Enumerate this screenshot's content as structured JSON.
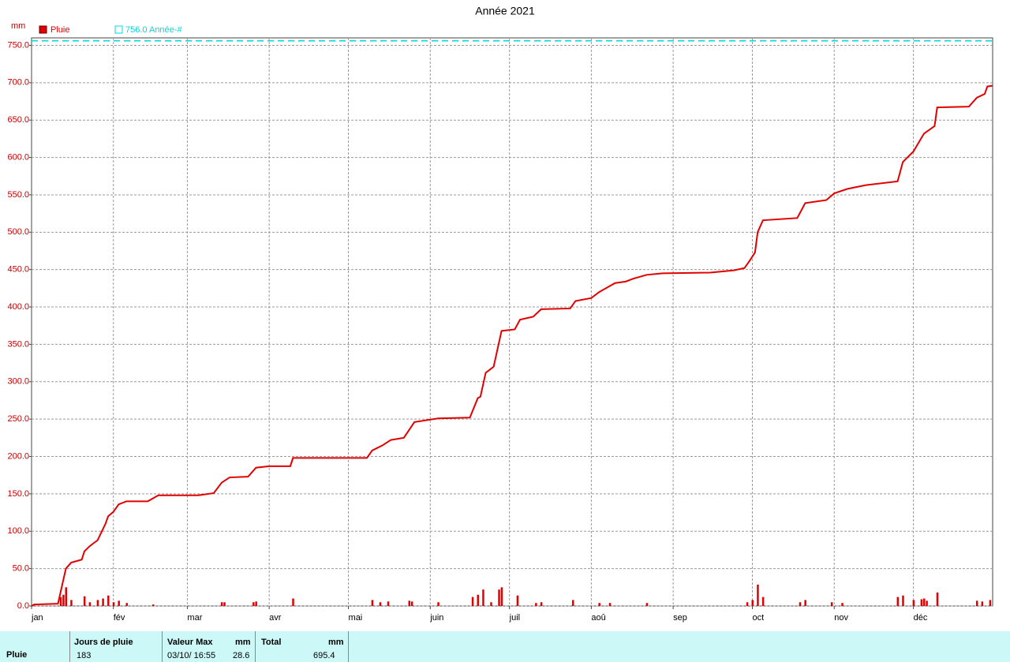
{
  "chart_data": {
    "type": "line",
    "title": "Année 2021",
    "y_label": "mm",
    "xlim": [
      0,
      364
    ],
    "ylim": [
      0,
      760
    ],
    "xticks": [
      {
        "value": 0,
        "label": "jan"
      },
      {
        "value": 31,
        "label": "fév"
      },
      {
        "value": 59,
        "label": "mar"
      },
      {
        "value": 90,
        "label": "avr"
      },
      {
        "value": 120,
        "label": "mai"
      },
      {
        "value": 151,
        "label": "juin"
      },
      {
        "value": 181,
        "label": "juil"
      },
      {
        "value": 212,
        "label": "aoû"
      },
      {
        "value": 243,
        "label": "sep"
      },
      {
        "value": 273,
        "label": "oct"
      },
      {
        "value": 304,
        "label": "nov"
      },
      {
        "value": 334,
        "label": "déc"
      }
    ],
    "yticks": [
      {
        "value": 0,
        "label": "0.0"
      },
      {
        "value": 50,
        "label": "50.0"
      },
      {
        "value": 100,
        "label": "100.0"
      },
      {
        "value": 150,
        "label": "150.0"
      },
      {
        "value": 200,
        "label": "200.0"
      },
      {
        "value": 250,
        "label": "250.0"
      },
      {
        "value": 300,
        "label": "300.0"
      },
      {
        "value": 350,
        "label": "350.0"
      },
      {
        "value": 400,
        "label": "400.0"
      },
      {
        "value": 450,
        "label": "450.0"
      },
      {
        "value": 500,
        "label": "500.0"
      },
      {
        "value": 550,
        "label": "550.0"
      },
      {
        "value": 600,
        "label": "600.0"
      },
      {
        "value": 650,
        "label": "650.0"
      },
      {
        "value": 700,
        "label": "700.0"
      },
      {
        "value": 750,
        "label": "750.0"
      }
    ],
    "grid": true,
    "reference": {
      "label": "756.0 Année-#",
      "value": 756,
      "color": "#00d8d8"
    },
    "series": [
      {
        "name": "Pluie",
        "color": "#e00000",
        "x": [
          0,
          1,
          10,
          13,
          15,
          19,
          20,
          22,
          25,
          28,
          29,
          31,
          33,
          36,
          44,
          48,
          63,
          69,
          72,
          75,
          82,
          85,
          90,
          98,
          99,
          127,
          129,
          133,
          136,
          141,
          145,
          154,
          166,
          169,
          170,
          172,
          175,
          178,
          183,
          185,
          190,
          193,
          204,
          206,
          212,
          215,
          221,
          225,
          228,
          233,
          239,
          257,
          266,
          270,
          272,
          274,
          275,
          277,
          290,
          293,
          301,
          304,
          309,
          316,
          328,
          330,
          334,
          338,
          342,
          343,
          355,
          358,
          361,
          362,
          364
        ],
        "values": [
          0,
          2,
          3,
          50,
          58,
          62,
          73,
          80,
          88,
          110,
          120,
          126,
          136,
          140,
          140,
          148,
          148,
          151,
          165,
          172,
          173,
          185,
          187,
          187,
          198,
          198,
          208,
          215,
          222,
          225,
          246,
          251,
          252,
          278,
          280,
          312,
          320,
          368,
          370,
          383,
          387,
          397,
          398,
          408,
          412,
          420,
          432,
          434,
          438,
          443,
          445,
          446,
          449,
          452,
          462,
          473,
          500,
          516,
          519,
          539,
          543,
          552,
          558,
          563,
          568,
          594,
          608,
          632,
          642,
          667,
          668,
          680,
          685,
          695,
          696
        ]
      },
      {
        "type": "bar",
        "color": "#e00000",
        "x": [
          11,
          12,
          13,
          15,
          20,
          22,
          25,
          27,
          29,
          31,
          33,
          36,
          46,
          72,
          73,
          84,
          85,
          99,
          129,
          132,
          135,
          143,
          144,
          154,
          167,
          169,
          171,
          174,
          177,
          178,
          184,
          191,
          193,
          205,
          215,
          219,
          233,
          271,
          273,
          275,
          277,
          291,
          293,
          303,
          307,
          328,
          330,
          334,
          337,
          338,
          339,
          343,
          358,
          360,
          363
        ],
        "values": [
          12,
          15,
          25,
          8,
          13,
          5,
          8,
          10,
          14,
          5,
          7,
          4,
          2,
          5,
          5,
          5,
          6,
          10,
          8,
          5,
          6,
          7,
          6,
          5,
          12,
          15,
          22,
          5,
          22,
          25,
          14,
          4,
          5,
          8,
          4,
          4,
          4,
          5,
          8,
          28.6,
          12,
          5,
          8,
          5,
          4,
          12,
          14,
          8,
          9,
          10,
          7,
          18,
          7,
          6,
          8
        ]
      }
    ],
    "summary": {
      "row_label": "Pluie",
      "headers": [
        "Jours de pluie",
        "Valeur Max",
        "mm",
        "Total",
        "mm"
      ],
      "days": 183,
      "max_date": "03/10/ 16:55",
      "max_value": 28.6,
      "total": 695.4
    }
  }
}
